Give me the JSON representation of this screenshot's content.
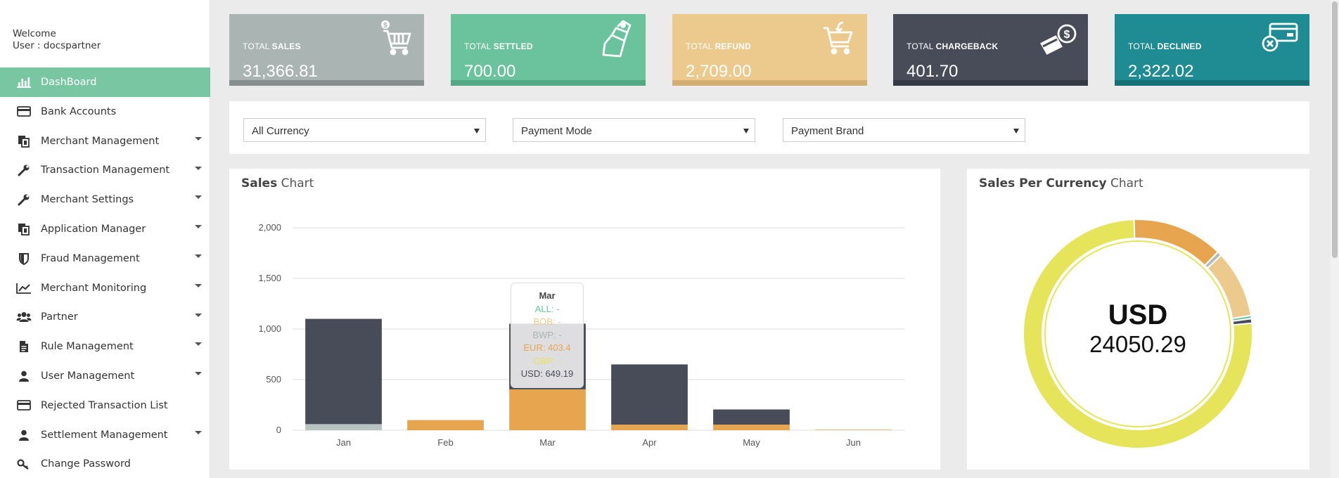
{
  "sidebar": {
    "welcome": "Welcome",
    "user": "User : docspartner",
    "items": [
      {
        "label": "DashBoard",
        "icon": "bar-chart-icon",
        "active": true,
        "caret": false
      },
      {
        "label": "Bank Accounts",
        "icon": "credit-card-icon",
        "active": false,
        "caret": false
      },
      {
        "label": "Merchant Management",
        "icon": "copy-icon",
        "active": false,
        "caret": true
      },
      {
        "label": "Transaction Management",
        "icon": "wrench-icon",
        "active": false,
        "caret": true
      },
      {
        "label": "Merchant Settings",
        "icon": "wrench-icon",
        "active": false,
        "caret": true
      },
      {
        "label": "Application Manager",
        "icon": "copy-icon",
        "active": false,
        "caret": true
      },
      {
        "label": "Fraud Management",
        "icon": "shield-icon",
        "active": false,
        "caret": true
      },
      {
        "label": "Merchant Monitoring",
        "icon": "line-chart-icon",
        "active": false,
        "caret": true
      },
      {
        "label": "Partner",
        "icon": "users-icon",
        "active": false,
        "caret": true
      },
      {
        "label": "Rule Management",
        "icon": "document-icon",
        "active": false,
        "caret": true
      },
      {
        "label": "User Management",
        "icon": "user-icon",
        "active": false,
        "caret": true
      },
      {
        "label": "Rejected Transaction List",
        "icon": "credit-card-icon",
        "active": false,
        "caret": false
      },
      {
        "label": "Settlement Management",
        "icon": "user-icon",
        "active": false,
        "caret": true
      },
      {
        "label": "Change Password",
        "icon": "key-icon",
        "active": false,
        "caret": false
      }
    ]
  },
  "cards": [
    {
      "prefix": "TOTAL ",
      "label": "SALES",
      "value": "31,366.81",
      "color": "#aab4b3",
      "bar": "#868f8e",
      "icon": "cart-icon"
    },
    {
      "prefix": "TOTAL ",
      "label": "SETTLED",
      "value": "700.00",
      "color": "#6ac39c",
      "bar": "#55a884",
      "icon": "money-bag-icon"
    },
    {
      "prefix": "TOTAL ",
      "label": "REFUND",
      "value": "2,709.00",
      "color": "#ecc98c",
      "bar": "#d2ae72",
      "icon": "cart-return-icon"
    },
    {
      "prefix": "TOTAL ",
      "label": "CHARGEBACK",
      "value": "401.70",
      "color": "#474c58",
      "bar": "#363a44",
      "icon": "card-refund-icon"
    },
    {
      "prefix": "TOTAL ",
      "label": "DECLINED",
      "value": "2,322.02",
      "color": "#1f8c93",
      "bar": "#167177",
      "icon": "card-declined-icon"
    }
  ],
  "filters": {
    "currency": "All Currency",
    "payment_mode": "Payment Mode",
    "payment_brand": "Payment Brand"
  },
  "sales_chart": {
    "title_bold": "Sales",
    "title_rest": " Chart"
  },
  "currency_chart": {
    "title_bold": "Sales Per Currency",
    "title_rest": " Chart",
    "center_label": "USD",
    "center_value": "24050.29"
  },
  "tooltip": {
    "title": "Mar",
    "lines": [
      {
        "text": "ALL: -",
        "color": "#6ac39c"
      },
      {
        "text": "BOB: -",
        "color": "#ecc98c"
      },
      {
        "text": "BWP: -",
        "color": "#aab4b3"
      },
      {
        "text": "EUR: 403.4",
        "color": "#e8a54f"
      },
      {
        "text": "GBP: -",
        "color": "#e6e45a"
      },
      {
        "text": "USD: 649.19",
        "color": "#474c58"
      }
    ]
  },
  "chart_data": [
    {
      "type": "bar",
      "stacked": true,
      "categories": [
        "Jan",
        "Feb",
        "Mar",
        "Apr",
        "May",
        "Jun"
      ],
      "ylim": [
        0,
        2000
      ],
      "yticks": [
        "0",
        "500",
        "1,000",
        "1,500",
        "2,000"
      ],
      "grid": true,
      "series": [
        {
          "name": "BWP",
          "color": "#b7c4c2",
          "values": [
            60,
            0,
            0,
            0,
            0,
            0
          ]
        },
        {
          "name": "EUR",
          "color": "#e8a54f",
          "values": [
            0,
            100,
            403.4,
            55,
            55,
            5
          ]
        },
        {
          "name": "USD",
          "color": "#474c58",
          "values": [
            1040,
            0,
            649.19,
            595,
            150,
            0
          ]
        }
      ]
    },
    {
      "type": "pie",
      "donut": true,
      "slices": [
        {
          "name": "USD",
          "value": 24050.29,
          "color": "#e6e45a"
        },
        {
          "name": "EUR",
          "color": "#e8a54f",
          "value": 4070
        },
        {
          "name": "",
          "color": "#b4bcba",
          "value": 200
        },
        {
          "name": "",
          "color": "#ecc98c",
          "value": 3000
        },
        {
          "name": "",
          "color": "#6ac39c",
          "value": 140
        },
        {
          "name": "",
          "color": "#474c58",
          "value": 200
        }
      ]
    }
  ]
}
